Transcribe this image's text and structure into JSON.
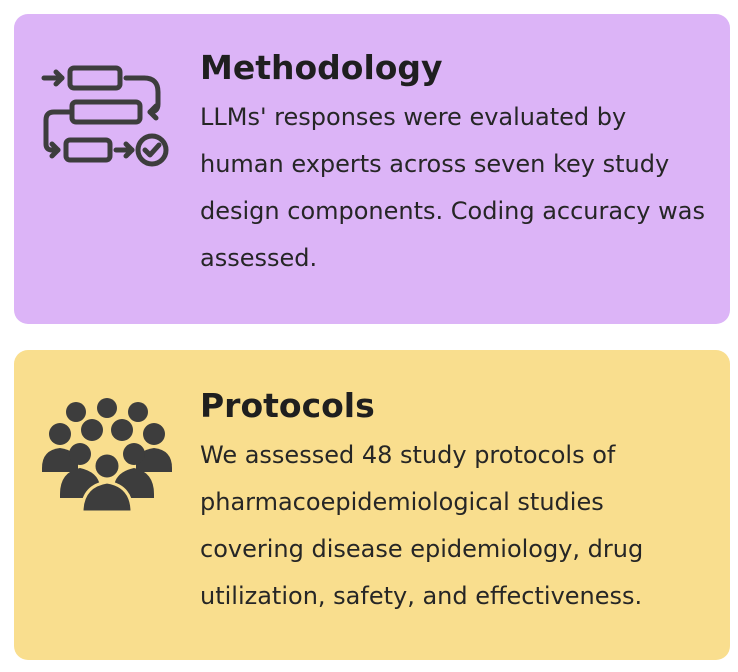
{
  "colors": {
    "methodology_bg": "#dcb4f7",
    "protocols_bg": "#f9de8e",
    "icon": "#3d3d3d",
    "text": "#222222"
  },
  "cards": [
    {
      "icon": "flowchart-icon",
      "title": "Methodology",
      "body": "LLMs' responses were evaluated by human experts across seven key study design components. Coding accuracy was assessed."
    },
    {
      "icon": "people-group-icon",
      "title": "Protocols",
      "body": "We assessed 48 study protocols of pharmacoepidemiological studies covering disease epidemiology, drug utilization, safety, and effectiveness."
    }
  ]
}
